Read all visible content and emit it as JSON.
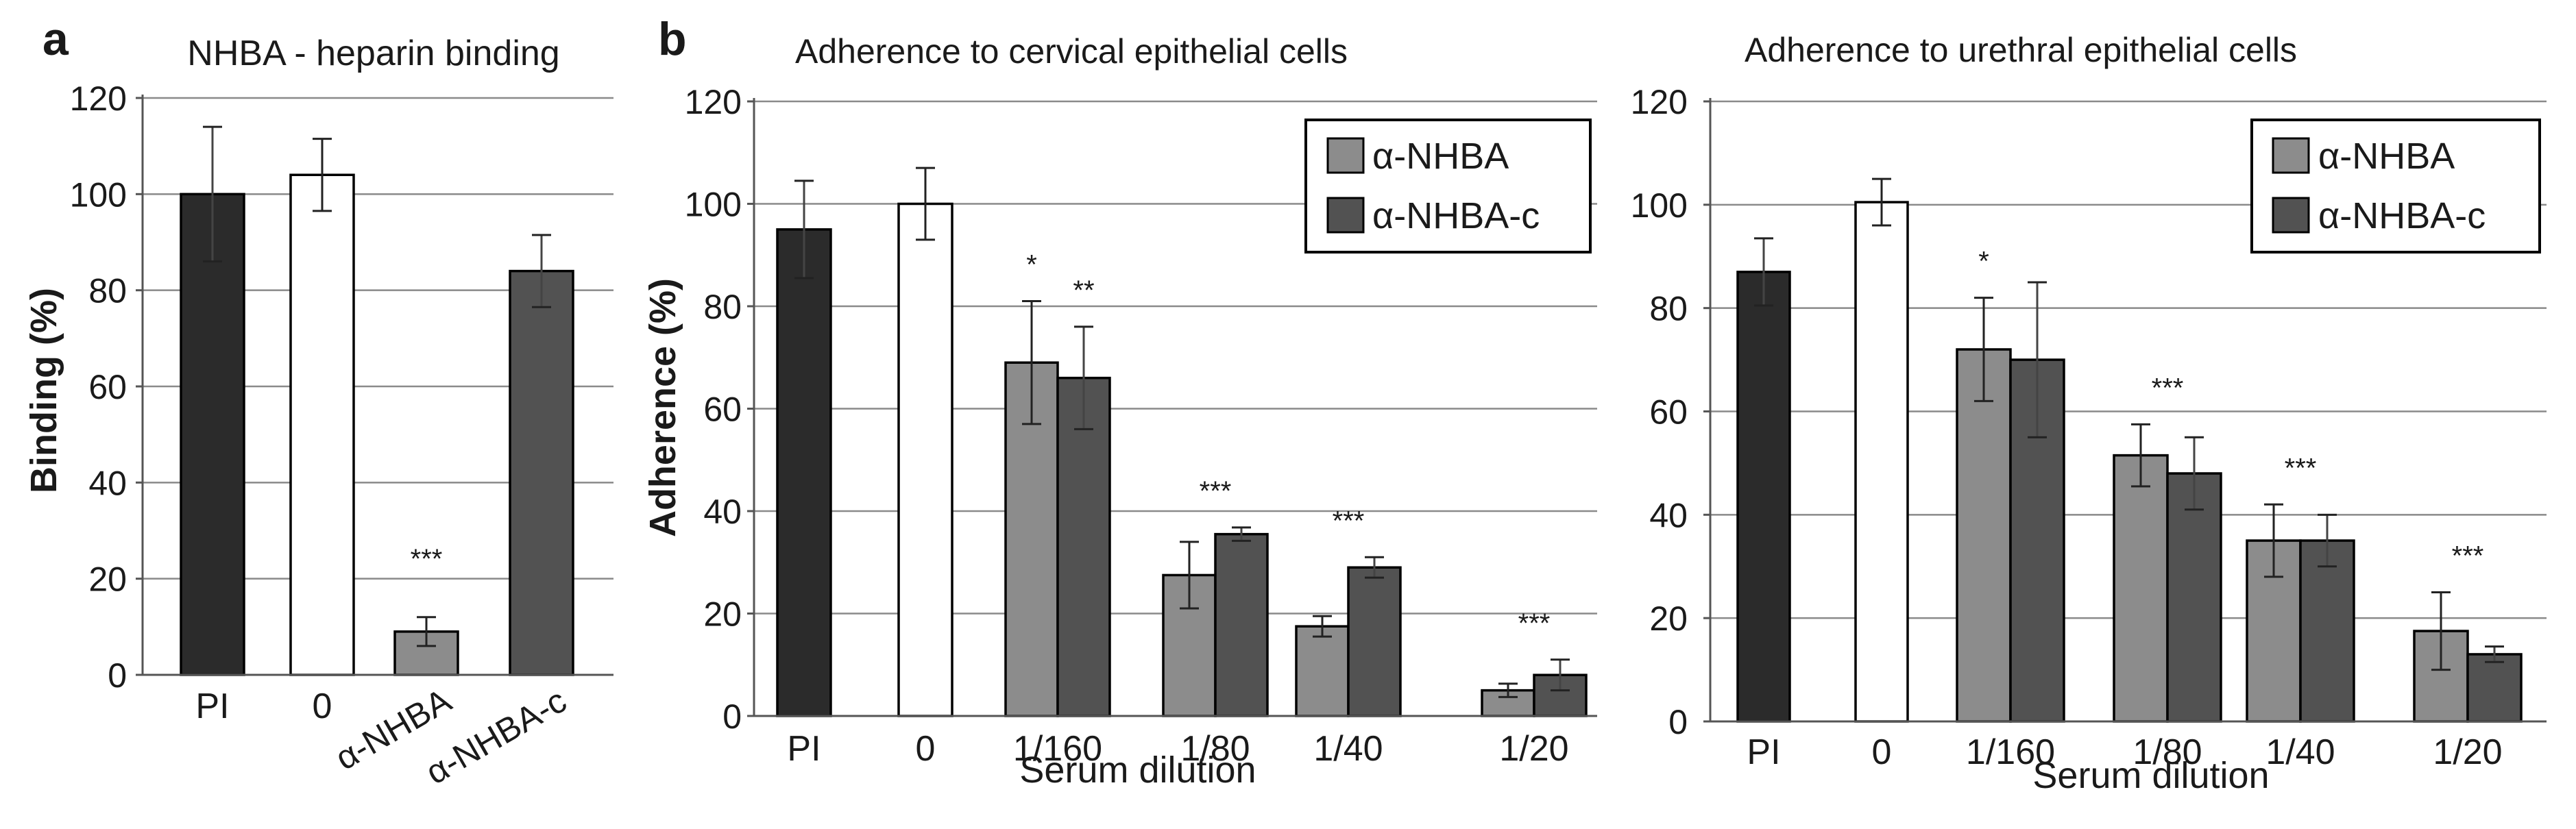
{
  "chart_data": [
    {
      "panel_label": "a",
      "type": "bar",
      "title": "NHBA - heparin binding",
      "ylabel": "Binding (%)",
      "xlabel": "",
      "ylim": [
        0,
        120
      ],
      "yticks": [
        0,
        20,
        40,
        60,
        80,
        100,
        120
      ],
      "categories": [
        "PI",
        "0",
        "α-NHBA",
        "α-NHBA-c"
      ],
      "values": [
        100,
        104,
        9,
        84
      ],
      "errors": [
        14,
        7.5,
        3,
        7.5
      ],
      "bar_colors": [
        "#2b2b2b",
        "#ffffff",
        "#8c8c8c",
        "#525252"
      ],
      "annotations": [
        "",
        "",
        "***",
        ""
      ],
      "grid": true
    },
    {
      "panel_label": "b",
      "type": "bar",
      "title": "Adherence to cervical epithelial cells",
      "ylabel": "Adherence (%)",
      "xlabel": "Serum dilution",
      "ylim": [
        0,
        120
      ],
      "yticks": [
        0,
        20,
        40,
        60,
        80,
        100,
        120
      ],
      "controls": [
        {
          "label": "PI",
          "value": 95,
          "error": 9.5,
          "color": "#2b2b2b"
        },
        {
          "label": "0",
          "value": 100,
          "error": 7,
          "color": "#ffffff"
        }
      ],
      "categories": [
        "1/160",
        "1/80",
        "1/40",
        "1/20"
      ],
      "series": [
        {
          "name": "α-NHBA",
          "color": "#8c8c8c",
          "values": [
            69,
            27.5,
            17.5,
            5
          ],
          "errors": [
            12,
            6.5,
            2,
            1.3
          ]
        },
        {
          "name": "α-NHBA-c",
          "color": "#525252",
          "values": [
            66,
            35.5,
            29,
            8
          ],
          "errors": [
            10,
            1.3,
            2,
            3
          ]
        }
      ],
      "group_annotations": [
        {
          "category": "1/160",
          "series": 0,
          "text": "*"
        },
        {
          "category": "1/160",
          "series": 1,
          "text": "**"
        },
        {
          "category": "1/80",
          "series": null,
          "text": "***"
        },
        {
          "category": "1/40",
          "series": null,
          "text": "***"
        },
        {
          "category": "1/20",
          "series": null,
          "text": "***"
        }
      ],
      "legend": "top-right",
      "grid": true
    },
    {
      "panel_label": "",
      "type": "bar",
      "title": "Adherence to urethral epithelial cells",
      "ylabel": "",
      "xlabel": "Serum dilution",
      "ylim": [
        0,
        120
      ],
      "yticks": [
        0,
        20,
        40,
        60,
        80,
        100,
        120
      ],
      "controls": [
        {
          "label": "PI",
          "value": 87,
          "error": 6.5,
          "color": "#2b2b2b"
        },
        {
          "label": "0",
          "value": 100.5,
          "error": 4.5,
          "color": "#ffffff"
        }
      ],
      "categories": [
        "1/160",
        "1/80",
        "1/40",
        "1/20"
      ],
      "series": [
        {
          "name": "α-NHBA",
          "color": "#8c8c8c",
          "values": [
            72,
            51.5,
            35,
            17.5
          ],
          "errors": [
            10,
            6,
            7,
            7.5
          ]
        },
        {
          "name": "α-NHBA-c",
          "color": "#525252",
          "values": [
            70,
            48,
            35,
            13
          ],
          "errors": [
            15,
            7,
            5,
            1.5
          ]
        }
      ],
      "group_annotations": [
        {
          "category": "1/160",
          "series": 0,
          "text": "*"
        },
        {
          "category": "1/80",
          "series": null,
          "text": "***"
        },
        {
          "category": "1/40",
          "series": null,
          "text": "***"
        },
        {
          "category": "1/20",
          "series": null,
          "text": "***"
        }
      ],
      "legend": "top-right",
      "grid": true
    }
  ]
}
